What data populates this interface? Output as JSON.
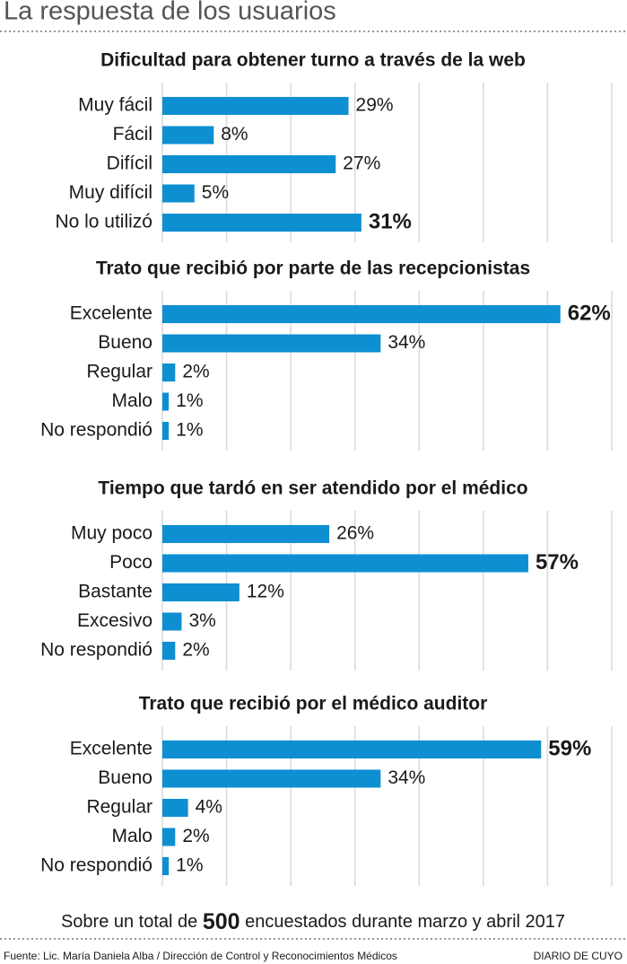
{
  "header": {
    "title": "La respuesta de los usuarios"
  },
  "chart_data": [
    {
      "type": "bar",
      "orientation": "horizontal",
      "title": "Dificultad para obtener turno a través de la web",
      "categories": [
        "Muy fácil",
        "Fácil",
        "Difícil",
        "Muy difícil",
        "No lo utilizó"
      ],
      "values": [
        29,
        8,
        27,
        5,
        31
      ],
      "value_labels": [
        "29%",
        "8%",
        "27%",
        "5%",
        "31%"
      ],
      "color": "#0d8fd2",
      "xlim": [
        0,
        70
      ],
      "xticks": [
        0,
        10,
        20,
        30,
        40,
        50,
        60,
        70
      ],
      "grid": true
    },
    {
      "type": "bar",
      "orientation": "horizontal",
      "title": "Trato que recibió por parte de las recepcionistas",
      "categories": [
        "Excelente",
        "Bueno",
        "Regular",
        "Malo",
        "No respondió"
      ],
      "values": [
        62,
        34,
        2,
        1,
        1
      ],
      "value_labels": [
        "62%",
        "34%",
        "2%",
        "1%",
        "1%"
      ],
      "color": "#0d8fd2",
      "xlim": [
        0,
        70
      ],
      "xticks": [
        0,
        10,
        20,
        30,
        40,
        50,
        60,
        70
      ],
      "grid": true
    },
    {
      "type": "bar",
      "orientation": "horizontal",
      "title": "Tiempo que tardó en ser atendido por el médico",
      "categories": [
        "Muy poco",
        "Poco",
        "Bastante",
        "Excesivo",
        "No respondió"
      ],
      "values": [
        26,
        57,
        12,
        3,
        2
      ],
      "value_labels": [
        "26%",
        "57%",
        "12%",
        "3%",
        "2%"
      ],
      "color": "#0d8fd2",
      "xlim": [
        0,
        70
      ],
      "xticks": [
        0,
        10,
        20,
        30,
        40,
        50,
        60,
        70
      ],
      "grid": true
    },
    {
      "type": "bar",
      "orientation": "horizontal",
      "title": "Trato que recibió por el médico auditor",
      "categories": [
        "Excelente",
        "Bueno",
        "Regular",
        "Malo",
        "No respondió"
      ],
      "values": [
        59,
        34,
        4,
        2,
        1
      ],
      "value_labels": [
        "59%",
        "34%",
        "4%",
        "2%",
        "1%"
      ],
      "color": "#0d8fd2",
      "xlim": [
        0,
        70
      ],
      "xticks": [
        0,
        10,
        20,
        30,
        40,
        50,
        60,
        70
      ],
      "grid": true
    }
  ],
  "footer": {
    "note_start": "Sobre un total de",
    "note_number": "500",
    "note_end": "encuestados durante marzo y abril 2017",
    "source": "Fuente: Lic. María Daniela Alba / Dirección de Control y Reconocimientos Médicos",
    "brand": "DIARIO DE CUYO"
  }
}
